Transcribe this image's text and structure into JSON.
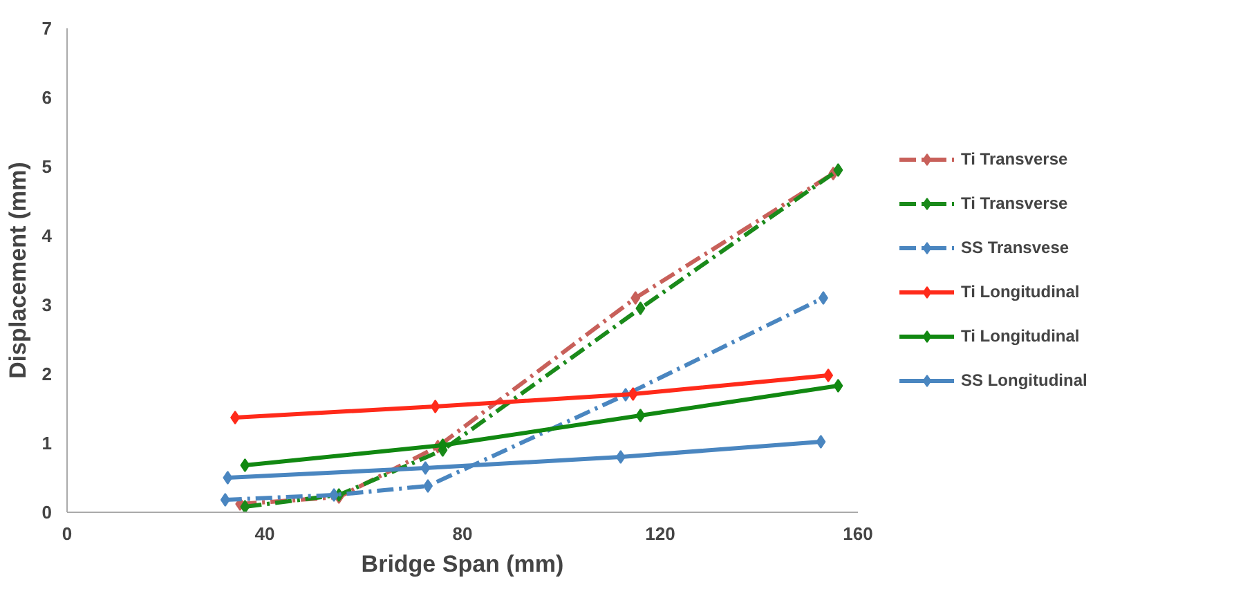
{
  "chart_data": {
    "type": "line",
    "xlabel": "Bridge Span (mm)",
    "ylabel": "Displacement (mm)",
    "xlim": [
      0,
      160
    ],
    "xticks": [
      0,
      40,
      80,
      120,
      160
    ],
    "ylim": [
      0,
      7
    ],
    "yticks": [
      0,
      1,
      2,
      3,
      4,
      5,
      6,
      7
    ],
    "grid": false,
    "legend": "right",
    "marker": "diamond",
    "series": [
      {
        "name": "Ti Transverse",
        "color": "#c8605a",
        "line_style": "dashed",
        "x": [
          35,
          55,
          75,
          115,
          155
        ],
        "values": [
          0.12,
          0.22,
          0.95,
          3.1,
          4.9
        ]
      },
      {
        "name": "Ti Transverse",
        "color": "#1a8a1a",
        "line_style": "dashed",
        "x": [
          36,
          55,
          76,
          116,
          156
        ],
        "values": [
          0.08,
          0.25,
          0.9,
          2.95,
          4.95
        ]
      },
      {
        "name": "SS Transvese",
        "color": "#4a86c0",
        "line_style": "dashed",
        "x": [
          32,
          54,
          73,
          113,
          153
        ],
        "values": [
          0.18,
          0.25,
          0.38,
          1.7,
          3.1
        ]
      },
      {
        "name": "Ti Longitudinal",
        "color": "#ff2a1a",
        "line_style": "solid",
        "x": [
          34,
          74.5,
          114.5,
          154
        ],
        "values": [
          1.37,
          1.53,
          1.71,
          1.98
        ]
      },
      {
        "name": "Ti Longitudinal",
        "color": "#118811",
        "line_style": "solid",
        "x": [
          36,
          76,
          116,
          156
        ],
        "values": [
          0.68,
          0.97,
          1.4,
          1.83
        ]
      },
      {
        "name": "SS Longitudinal",
        "color": "#4a86c0",
        "line_style": "solid",
        "x": [
          32.5,
          72.5,
          112,
          152.5
        ],
        "values": [
          0.5,
          0.64,
          0.8,
          1.02
        ]
      }
    ]
  }
}
